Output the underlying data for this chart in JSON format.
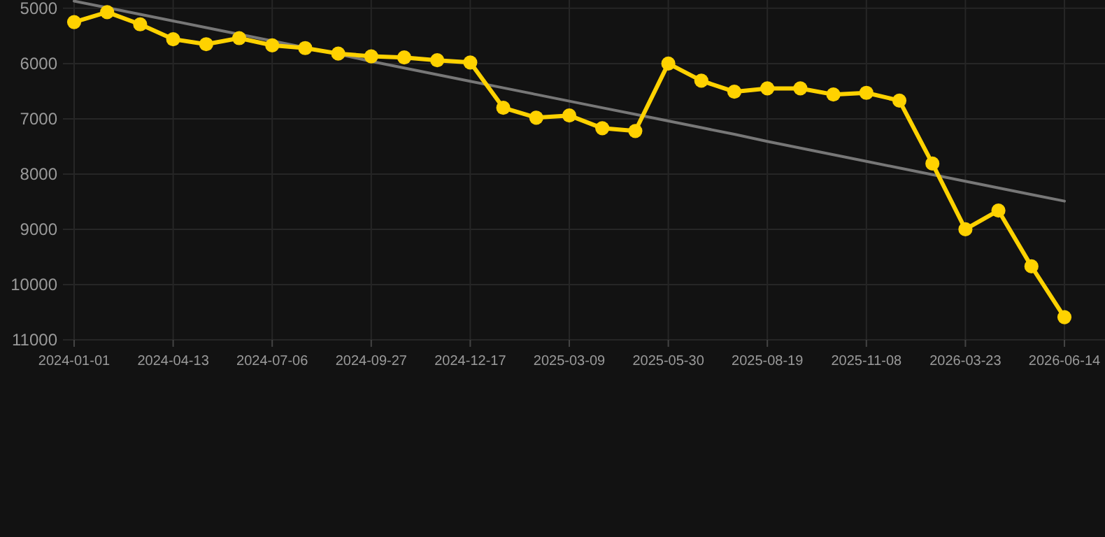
{
  "chart_data": {
    "type": "line",
    "categories": [
      "2024-01-01",
      null,
      null,
      "2024-04-13",
      null,
      null,
      "2024-07-06",
      null,
      null,
      "2024-09-27",
      null,
      null,
      "2024-12-17",
      null,
      null,
      "2025-03-09",
      null,
      null,
      "2025-05-30",
      null,
      null,
      "2025-08-19",
      null,
      null,
      "2025-11-08",
      null,
      null,
      "2026-03-23",
      null,
      null,
      "2026-06-14"
    ],
    "series": [
      {
        "color": "#ffd200",
        "values": [
          5250,
          5070,
          5290,
          5560,
          5650,
          5540,
          5670,
          5720,
          5820,
          5870,
          5890,
          5940,
          5980,
          6800,
          6980,
          6940,
          7170,
          7220,
          6000,
          6310,
          6510,
          6450,
          6450,
          6560,
          6530,
          6670,
          7810,
          9000,
          8660,
          9670,
          10590
        ]
      },
      {
        "type": "line",
        "color": "#777777",
        "values": [
          4870,
          4990,
          5110,
          5230,
          5350,
          5470,
          5590,
          5710,
          5830,
          5960,
          6080,
          6200,
          6320,
          6440,
          6560,
          6680,
          6800,
          6920,
          7040,
          7160,
          7280,
          7410,
          7530,
          7650,
          7770,
          7890,
          8010,
          8130,
          8250,
          8370,
          8490
        ],
        "marker": "none"
      }
    ],
    "ylim": [
      11000,
      4850
    ],
    "yticks": [
      5000,
      6000,
      7000,
      8000,
      9000,
      10000,
      11000
    ],
    "grid": true,
    "marker": "circle",
    "line_style": "solid"
  }
}
